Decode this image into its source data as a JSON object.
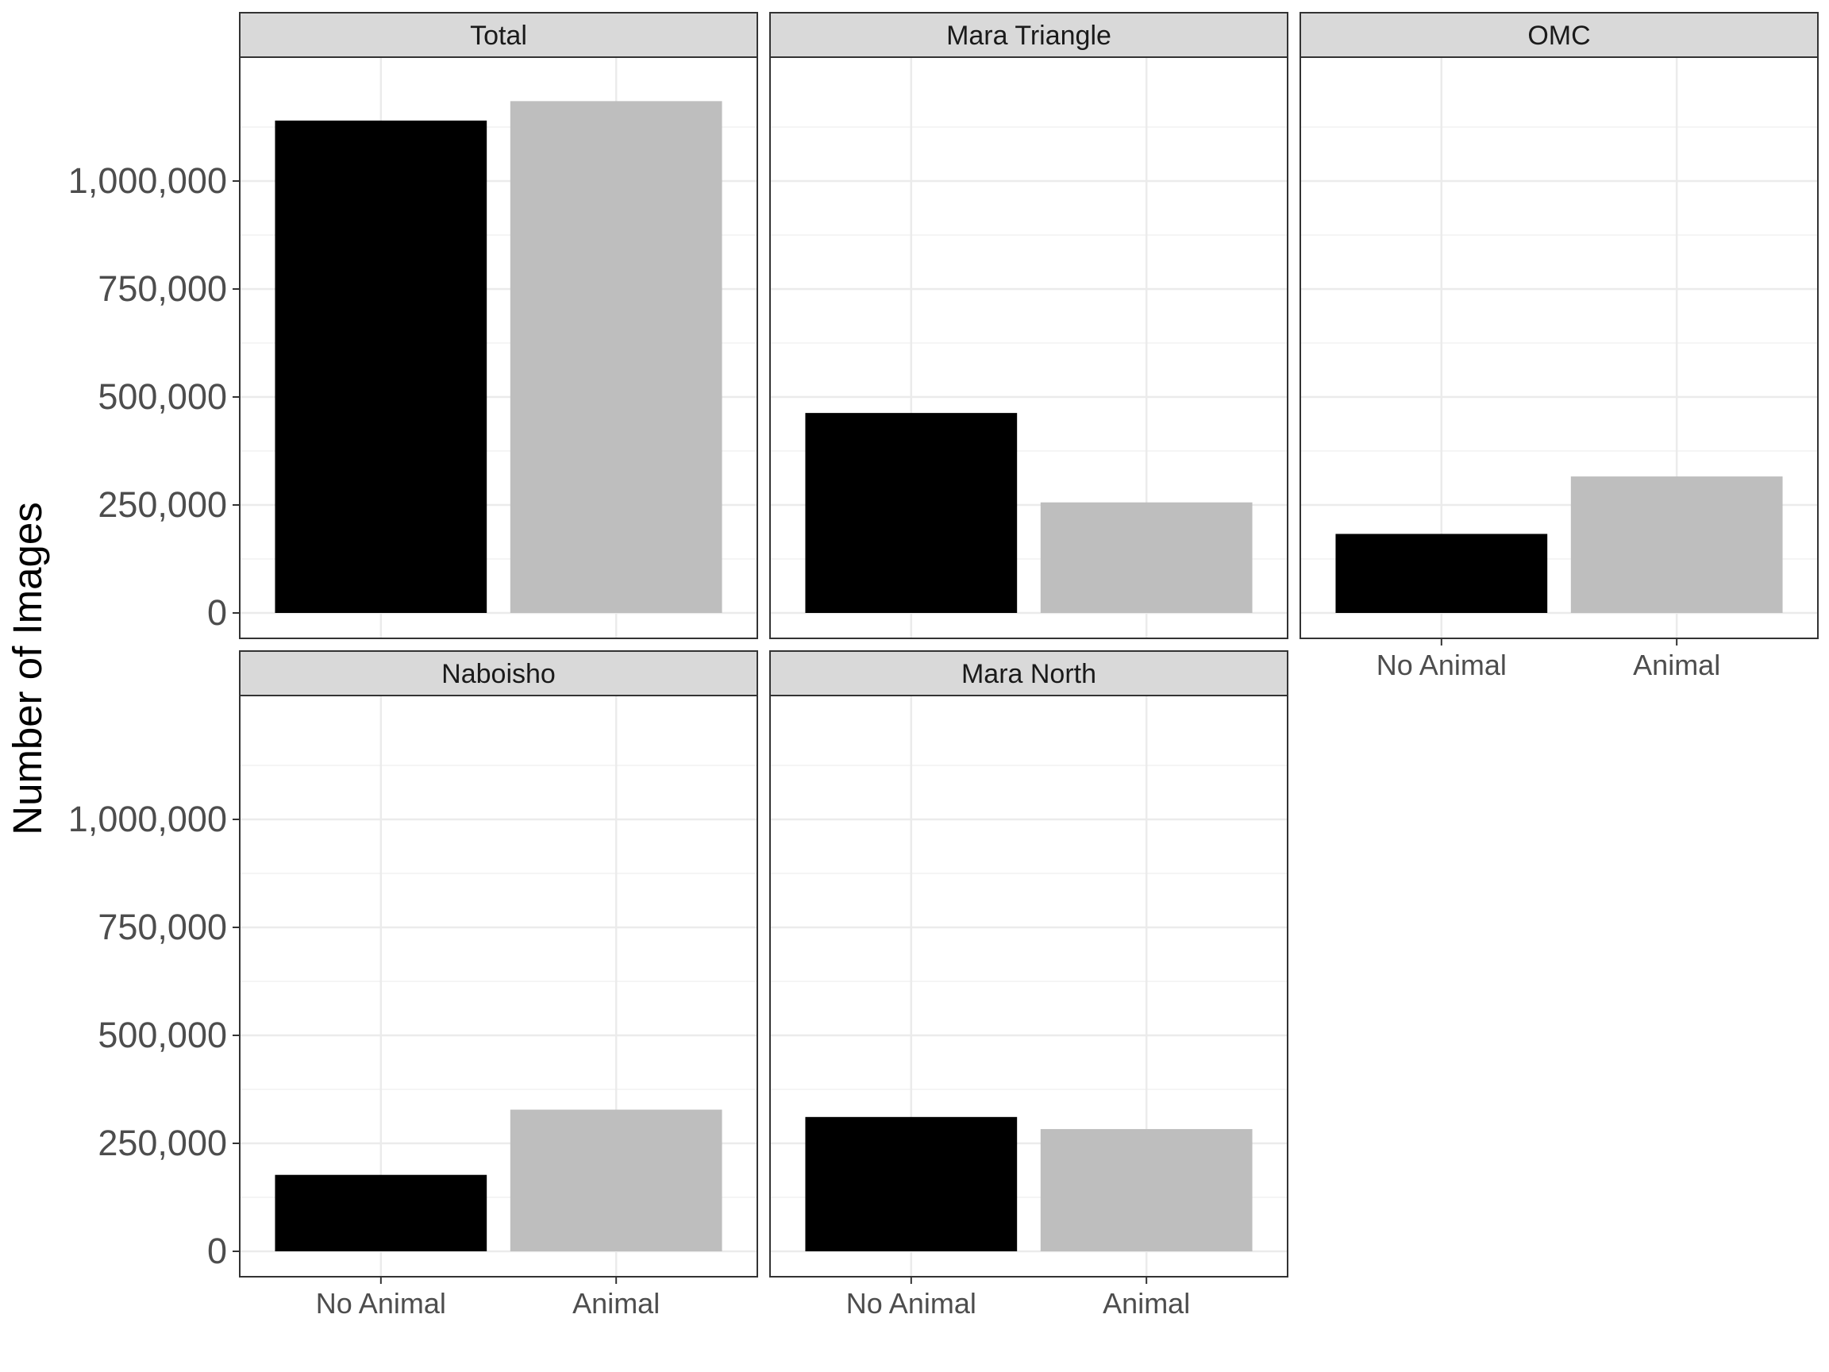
{
  "chart_data": {
    "type": "bar",
    "layout": "facet_wrap",
    "ylabel": "Number of Images",
    "xlabel": "",
    "ylim": [
      0,
      1250000
    ],
    "yticks": [
      0,
      250000,
      500000,
      750000,
      1000000
    ],
    "ytick_labels": [
      "0",
      "250,000",
      "500,000",
      "750,000",
      "1,000,000"
    ],
    "categories": [
      "No Animal",
      "Animal"
    ],
    "colors": {
      "No Animal": "#000000",
      "Animal": "#bebebe"
    },
    "grid": true,
    "legend": "none",
    "panels": [
      {
        "title": "Total",
        "values": [
          1140000,
          1185000
        ]
      },
      {
        "title": "Mara Triangle",
        "values": [
          463000,
          256000
        ]
      },
      {
        "title": "OMC",
        "values": [
          183000,
          316000
        ]
      },
      {
        "title": "Naboisho",
        "values": [
          177000,
          328000
        ]
      },
      {
        "title": "Mara North",
        "values": [
          311000,
          283000
        ]
      }
    ]
  }
}
